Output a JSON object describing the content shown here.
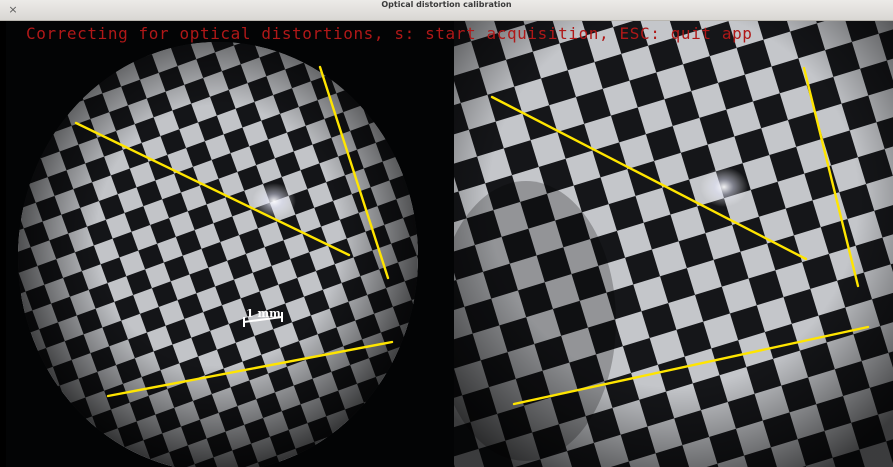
{
  "window": {
    "title": "Optical distortion calibration",
    "close_glyph": "×"
  },
  "overlay": {
    "status_text": "Correcting for optical distortions, s: start acquisition, ESC: quit app",
    "text_color": "#b01818"
  },
  "left_view": {
    "scale_bar_label": "1 mm"
  },
  "colors": {
    "guide_line": "#ffe500",
    "checker_light": "#c2c4c8",
    "checker_dark": "#141518",
    "background": "#030405"
  }
}
